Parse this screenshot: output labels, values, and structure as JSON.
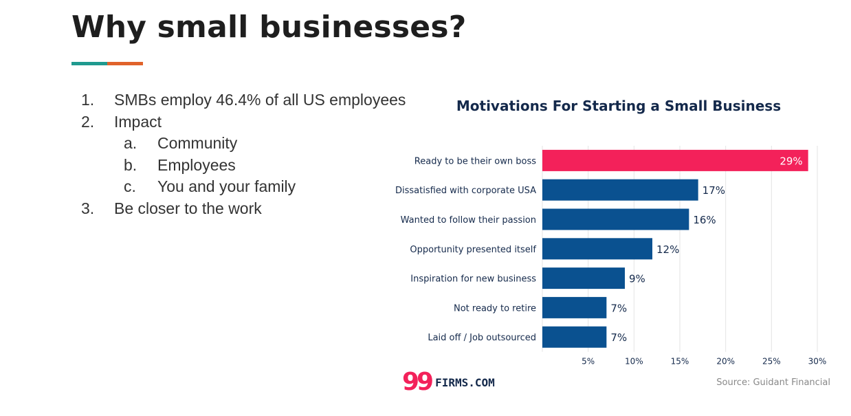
{
  "slide": {
    "title": "Why small businesses?",
    "accent_colors": [
      "#1f9a8f",
      "#e0622a"
    ]
  },
  "list": [
    {
      "num": "1.",
      "text": "SMBs employ 46.4% of all US employees",
      "level": 1
    },
    {
      "num": "2.",
      "text": "Impact",
      "level": 1
    },
    {
      "num": "a.",
      "text": "Community",
      "level": 2
    },
    {
      "num": "b.",
      "text": "Employees",
      "level": 2
    },
    {
      "num": "c.",
      "text": "You and your family",
      "level": 2
    },
    {
      "num": "3.",
      "text": "Be closer to the work",
      "level": 1
    }
  ],
  "chart_data": {
    "type": "bar",
    "orientation": "horizontal",
    "title": "Motivations For Starting a Small Business",
    "categories": [
      "Ready to be their own boss",
      "Dissatisfied with corporate USA",
      "Wanted to follow their passion",
      "Opportunity presented itself",
      "Inspiration for new business",
      "Not ready to retire",
      "Laid off / Job outsourced"
    ],
    "values": [
      29,
      17,
      16,
      12,
      9,
      7,
      7
    ],
    "value_labels": [
      "29%",
      "17%",
      "16%",
      "12%",
      "9%",
      "7%",
      "7%"
    ],
    "xlim": [
      0,
      30
    ],
    "x_ticks": [
      5,
      10,
      15,
      20,
      25,
      30
    ],
    "x_tick_labels": [
      "5%",
      "10%",
      "15%",
      "20%",
      "25%",
      "30%"
    ],
    "grid": true,
    "highlight_index": 0,
    "colors": {
      "highlight": "#f3215a",
      "default": "#0a5190",
      "grid": "#e3e3e3",
      "text": "#14294b"
    }
  },
  "footer": {
    "logo_number": "99",
    "logo_text": "FIRMS.COM",
    "logo_color": "#f3215a",
    "source": "Source: Guidant Financial"
  }
}
